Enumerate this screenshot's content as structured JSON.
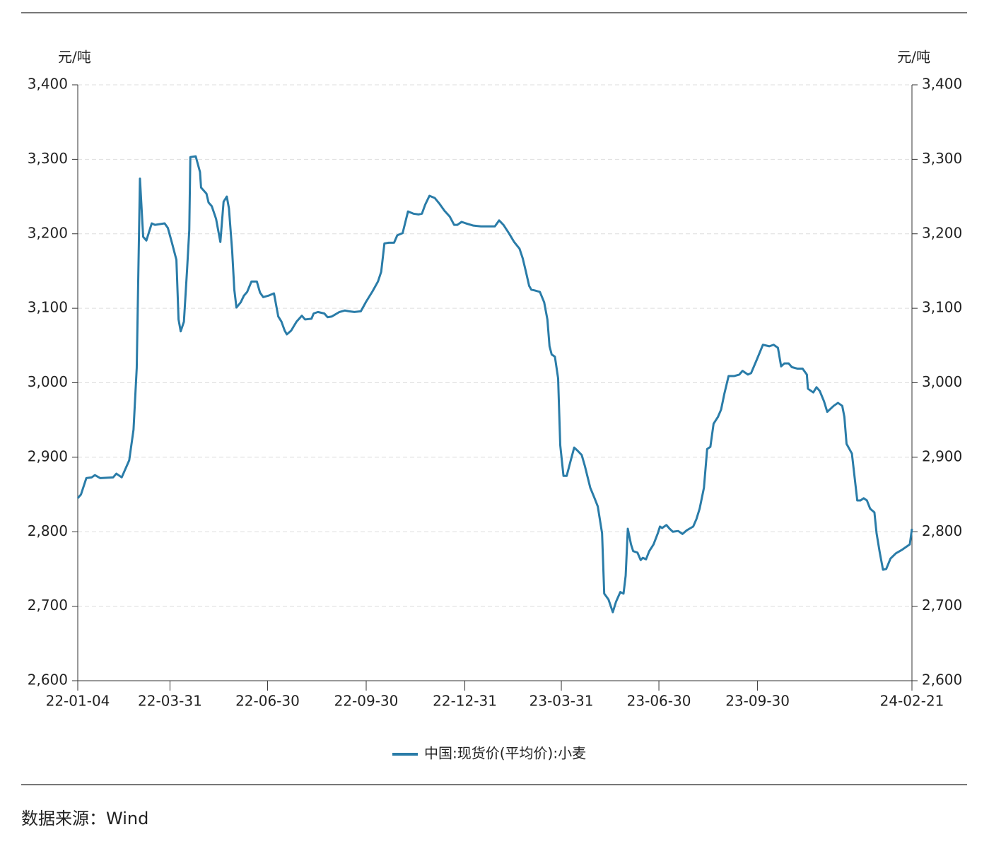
{
  "chart_data": {
    "type": "line",
    "ylabel": "元/吨",
    "y2label": "元/吨",
    "source": "数据来源：Wind",
    "x": [
      "22-01-04",
      "22-01-07",
      "22-01-12",
      "22-01-17",
      "22-01-20",
      "22-01-25",
      "22-02-06",
      "22-02-09",
      "22-02-14",
      "22-02-21",
      "22-02-25",
      "22-02-28",
      "22-03-03",
      "22-03-06",
      "22-03-09",
      "22-03-14",
      "22-03-17",
      "22-03-26",
      "22-03-29",
      "22-04-02",
      "22-04-06",
      "22-04-08",
      "22-04-10",
      "22-04-13",
      "22-04-16",
      "22-04-18",
      "22-04-19",
      "22-04-24",
      "22-04-28",
      "22-04-29",
      "22-05-04",
      "22-05-06",
      "22-05-09",
      "22-05-13",
      "22-05-17",
      "22-05-20",
      "22-05-23",
      "22-05-25",
      "22-05-28",
      "22-05-30",
      "22-06-01",
      "22-06-05",
      "22-06-08",
      "22-06-11",
      "22-06-15",
      "22-06-20",
      "22-06-23",
      "22-06-26",
      "22-07-01",
      "22-07-06",
      "22-07-10",
      "22-07-13",
      "22-07-16",
      "22-07-18",
      "22-07-22",
      "22-07-27",
      "22-08-01",
      "22-08-04",
      "22-08-10",
      "22-08-12",
      "22-08-16",
      "22-08-22",
      "22-08-25",
      "22-08-29",
      "22-09-05",
      "22-09-10",
      "22-09-14",
      "22-09-19",
      "22-09-25",
      "22-09-30",
      "22-10-06",
      "22-10-11",
      "22-10-14",
      "22-10-17",
      "22-10-21",
      "22-10-26",
      "22-10-29",
      "22-11-03",
      "22-11-08",
      "22-11-13",
      "22-11-18",
      "22-11-21",
      "22-11-24",
      "22-11-28",
      "22-12-03",
      "22-12-07",
      "22-12-12",
      "22-12-17",
      "22-12-21",
      "22-12-24",
      "22-12-28",
      "23-01-01",
      "23-01-08",
      "23-01-15",
      "23-01-28",
      "23-02-01",
      "23-02-05",
      "23-02-10",
      "23-02-15",
      "23-02-20",
      "23-02-23",
      "23-02-26",
      "23-03-01",
      "23-03-03",
      "23-03-06",
      "23-03-11",
      "23-03-15",
      "23-03-18",
      "23-03-20",
      "23-03-22",
      "23-03-25",
      "23-03-28",
      "23-03-30",
      "23-04-02",
      "23-04-05",
      "23-04-09",
      "23-04-12",
      "23-04-15",
      "23-04-19",
      "23-04-22",
      "23-04-27",
      "23-05-01",
      "23-05-04",
      "23-05-07",
      "23-05-08",
      "23-05-10",
      "23-05-14",
      "23-05-18",
      "23-05-21",
      "23-05-25",
      "23-05-28",
      "23-05-30",
      "23-06-01",
      "23-06-04",
      "23-06-06",
      "23-06-10",
      "23-06-13",
      "23-06-15",
      "23-06-18",
      "23-06-21",
      "23-06-25",
      "23-06-29",
      "23-07-01",
      "23-07-03",
      "23-07-07",
      "23-07-10",
      "23-07-13",
      "23-07-18",
      "23-07-22",
      "23-07-26",
      "23-08-01",
      "23-08-04",
      "23-08-07",
      "23-08-11",
      "23-08-14",
      "23-08-17",
      "23-08-20",
      "23-08-24",
      "23-08-27",
      "23-08-30",
      "23-09-03",
      "23-09-08",
      "23-09-13",
      "23-09-16",
      "23-09-21",
      "23-09-24",
      "23-09-29",
      "23-10-05",
      "23-10-11",
      "23-10-15",
      "23-10-19",
      "23-10-22",
      "23-10-25",
      "23-10-29",
      "23-11-01",
      "23-11-06",
      "23-11-11",
      "23-11-15",
      "23-11-16",
      "23-11-21",
      "23-11-24",
      "23-11-27",
      "23-12-01",
      "23-12-04",
      "23-12-10",
      "23-12-14",
      "23-12-18",
      "23-12-20",
      "23-12-22",
      "23-12-27",
      "24-01-01",
      "24-01-04",
      "24-01-07",
      "24-01-10",
      "24-01-13",
      "24-01-17",
      "24-01-19",
      "24-01-22",
      "24-01-25",
      "24-01-28",
      "24-02-01",
      "24-02-06",
      "24-02-12",
      "24-02-19",
      "24-02-21"
    ],
    "series": [
      {
        "name": "中国:现货价(平均价):小麦",
        "color": "#2a7ca8",
        "values": [
          2845,
          2850,
          2872,
          2873,
          2876,
          2872,
          2873,
          2878,
          2873,
          2896,
          2937,
          3020,
          3274,
          3196,
          3191,
          3214,
          3212,
          3214,
          3208,
          3187,
          3165,
          3085,
          3069,
          3082,
          3153,
          3205,
          3303,
          3304,
          3283,
          3262,
          3254,
          3242,
          3237,
          3220,
          3189,
          3243,
          3250,
          3234,
          3177,
          3125,
          3101,
          3108,
          3117,
          3122,
          3136,
          3136,
          3121,
          3115,
          3117,
          3120,
          3089,
          3082,
          3070,
          3065,
          3070,
          3082,
          3090,
          3085,
          3086,
          3093,
          3095,
          3093,
          3088,
          3089,
          3095,
          3097,
          3096,
          3095,
          3096,
          3109,
          3123,
          3136,
          3149,
          3187,
          3188,
          3188,
          3198,
          3201,
          3230,
          3227,
          3226,
          3227,
          3239,
          3251,
          3248,
          3241,
          3231,
          3223,
          3212,
          3212,
          3216,
          3214,
          3211,
          3210,
          3210,
          3218,
          3212,
          3201,
          3189,
          3180,
          3167,
          3149,
          3130,
          3125,
          3124,
          3122,
          3108,
          3085,
          3049,
          3038,
          3035,
          3006,
          2916,
          2875,
          2875,
          2897,
          2913,
          2909,
          2903,
          2888,
          2859,
          2845,
          2834,
          2807,
          2798,
          2717,
          2709,
          2692,
          2706,
          2719,
          2717,
          2741,
          2804,
          2783,
          2774,
          2772,
          2762,
          2765,
          2763,
          2774,
          2783,
          2798,
          2807,
          2805,
          2809,
          2804,
          2800,
          2801,
          2797,
          2802,
          2807,
          2817,
          2831,
          2859,
          2911,
          2914,
          2945,
          2954,
          2964,
          2985,
          3009,
          3009,
          3011,
          3016,
          3011,
          3013,
          3030,
          3051,
          3049,
          3051,
          3047,
          3022,
          3026,
          3026,
          3021,
          3019,
          3019,
          3011,
          2992,
          2987,
          2994,
          2989,
          2975,
          2961,
          2969,
          2973,
          2969,
          2954,
          2918,
          2905,
          2842,
          2842,
          2845,
          2842,
          2831,
          2826,
          2798,
          2772,
          2749,
          2750,
          2764,
          2771,
          2776,
          2783,
          2804
        ]
      }
    ],
    "xlim": [
      "22-01-04",
      "24-02-21"
    ],
    "xticks": [
      "22-01-04",
      "22-03-31",
      "22-06-30",
      "22-09-30",
      "22-12-31",
      "23-03-31",
      "23-06-30",
      "23-09-30",
      "24-02-21"
    ],
    "ylim": [
      2600,
      3400
    ],
    "yticks": [
      {
        "value": 2600,
        "label": "2,600"
      },
      {
        "value": 2700,
        "label": "2,700"
      },
      {
        "value": 2800,
        "label": "2,800"
      },
      {
        "value": 2900,
        "label": "2,900"
      },
      {
        "value": 3000,
        "label": "3,000"
      },
      {
        "value": 3100,
        "label": "3,100"
      },
      {
        "value": 3200,
        "label": "3,200"
      },
      {
        "value": 3300,
        "label": "3,300"
      },
      {
        "value": 3400,
        "label": "3,400"
      }
    ],
    "y2lim": [
      2600,
      3400
    ],
    "y2ticks": [
      {
        "value": 2600,
        "label": "2,600"
      },
      {
        "value": 2700,
        "label": "2,700"
      },
      {
        "value": 2800,
        "label": "2,800"
      },
      {
        "value": 2900,
        "label": "2,900"
      },
      {
        "value": 3000,
        "label": "3,000"
      },
      {
        "value": 3100,
        "label": "3,100"
      },
      {
        "value": 3200,
        "label": "3,200"
      },
      {
        "value": 3300,
        "label": "3,300"
      },
      {
        "value": 3400,
        "label": "3,400"
      }
    ],
    "grid": true,
    "legend": "bottom"
  }
}
